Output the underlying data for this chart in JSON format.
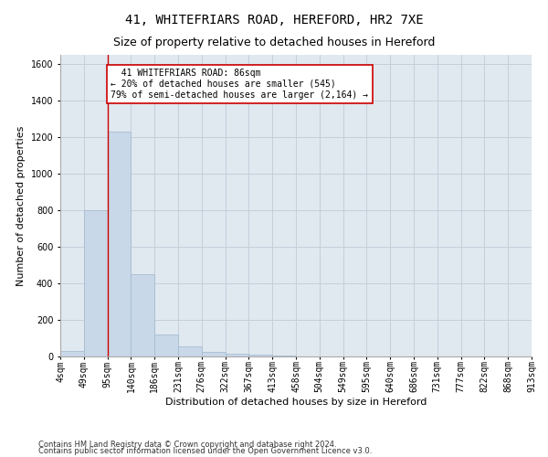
{
  "title": "41, WHITEFRIARS ROAD, HEREFORD, HR2 7XE",
  "subtitle": "Size of property relative to detached houses in Hereford",
  "xlabel": "Distribution of detached houses by size in Hereford",
  "ylabel": "Number of detached properties",
  "footer1": "Contains HM Land Registry data © Crown copyright and database right 2024.",
  "footer2": "Contains public sector information licensed under the Open Government Licence v3.0.",
  "bar_color": "#c8d8e8",
  "bar_edge_color": "#a0b8cc",
  "background_color": "#e0e8f0",
  "bin_labels": [
    "4sqm",
    "49sqm",
    "95sqm",
    "140sqm",
    "186sqm",
    "231sqm",
    "276sqm",
    "322sqm",
    "367sqm",
    "413sqm",
    "458sqm",
    "504sqm",
    "549sqm",
    "595sqm",
    "640sqm",
    "686sqm",
    "731sqm",
    "777sqm",
    "822sqm",
    "868sqm",
    "913sqm"
  ],
  "bar_values": [
    30,
    800,
    1230,
    450,
    120,
    55,
    25,
    15,
    10,
    3,
    2,
    0,
    0,
    0,
    0,
    0,
    0,
    0,
    0,
    0
  ],
  "ylim": [
    0,
    1650
  ],
  "yticks": [
    0,
    200,
    400,
    600,
    800,
    1000,
    1200,
    1400,
    1600
  ],
  "property_line_x": 2,
  "property_line_color": "#cc0000",
  "annotation_text": "  41 WHITEFRIARS ROAD: 86sqm\n← 20% of detached houses are smaller (545)\n79% of semi-detached houses are larger (2,164) →",
  "annotation_box_color": "#cc0000",
  "grid_color": "#c0ccd8",
  "title_fontsize": 10,
  "subtitle_fontsize": 9,
  "ylabel_fontsize": 8,
  "xlabel_fontsize": 8,
  "tick_fontsize": 7,
  "footer_fontsize": 6,
  "annot_fontsize": 7
}
